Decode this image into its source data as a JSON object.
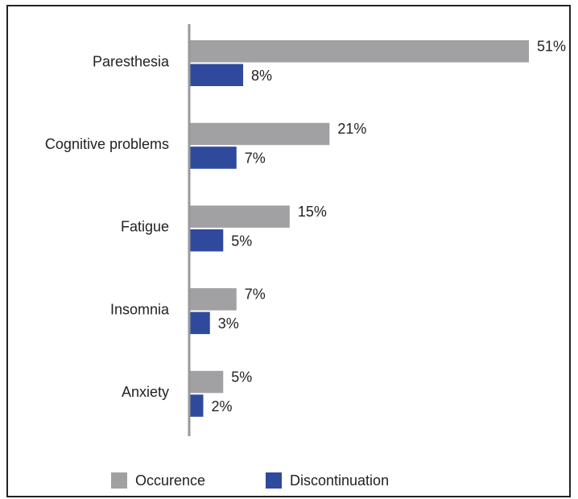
{
  "chart_data": {
    "type": "bar",
    "orientation": "horizontal",
    "categories": [
      "Paresthesia",
      "Cognitive problems",
      "Fatigue",
      "Insomnia",
      "Anxiety"
    ],
    "series": [
      {
        "name": "Occurence",
        "color": "#a1a1a3",
        "values": [
          51,
          21,
          15,
          7,
          5
        ],
        "value_labels": [
          "51%",
          "21%",
          "15%",
          "7%",
          "5%"
        ]
      },
      {
        "name": "Discontinuation",
        "color": "#2f4a9c",
        "values": [
          8,
          7,
          5,
          3,
          2
        ],
        "value_labels": [
          "8%",
          "7%",
          "5%",
          "3%",
          "2%"
        ]
      }
    ],
    "legend": "bottom"
  }
}
